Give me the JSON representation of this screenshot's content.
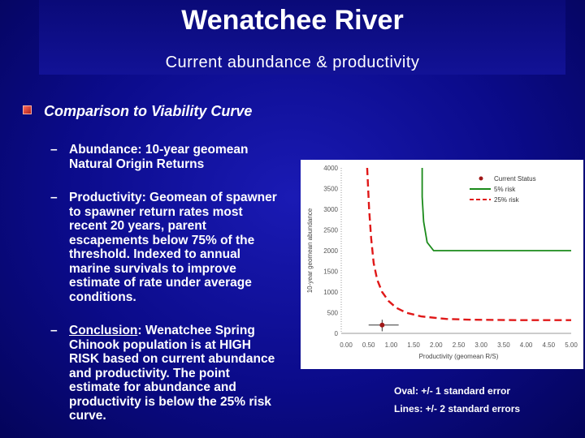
{
  "slide": {
    "title": "Wenatchee River",
    "subtitle": "Current abundance & productivity",
    "heading": "Comparison to Viability Curve",
    "bullets": [
      {
        "dash": "–",
        "text": "Abundance:  10-year geomean Natural Origin Returns"
      },
      {
        "dash": "–",
        "text": "Productivity:  Geomean of spawner to spawner return rates most recent 20 years, parent escapements below 75% of the threshold.  Indexed to annual marine survivals to improve estimate of rate under average conditions."
      }
    ],
    "conclusion": {
      "dash": "–",
      "label": "Conclusion",
      "text_pre": ":  Wenatchee Spring Chinook population is at ",
      "highlight": "HIGH RISK",
      "text_post": " based on current abundance and productivity.  The point estimate for abundance and productivity is below the 25% risk curve."
    },
    "notes": {
      "oval": "Oval:  +/- 1 standard error",
      "lines": "Lines: +/- 2 standard errors"
    }
  },
  "chart_data": {
    "type": "line",
    "xlabel": "Productivity (geomean R/S)",
    "ylabel": "10-year geomean abundance",
    "xlim": [
      0,
      4.5
    ],
    "ylim": [
      0,
      4000
    ],
    "x_ticks": [
      "0.00",
      "0.50",
      "1.00",
      "1.50",
      "2.00",
      "2.50",
      "3.00",
      "3.50",
      "4.00",
      "4.50",
      "5.00"
    ],
    "y_ticks": [
      "0",
      "500",
      "1000",
      "1500",
      "2000",
      "2500",
      "3000",
      "3500",
      "4000"
    ],
    "legend_position": "top-right",
    "series": [
      {
        "name": "Current Status",
        "kind": "point",
        "color": "#a01818",
        "x": 0.72,
        "y": 200,
        "x_err": [
          0.45,
          1.05
        ],
        "y_err": [
          50,
          330
        ]
      },
      {
        "name": "5% risk",
        "kind": "line",
        "color": "#1a8a1a",
        "style": "solid",
        "points": [
          [
            1.52,
            4000
          ],
          [
            1.52,
            3300
          ],
          [
            1.55,
            2700
          ],
          [
            1.62,
            2200
          ],
          [
            1.75,
            2000
          ],
          [
            4.5,
            2000
          ]
        ]
      },
      {
        "name": "25% risk",
        "kind": "line",
        "color": "#e01818",
        "style": "dashed",
        "points": [
          [
            0.42,
            4000
          ],
          [
            0.46,
            3000
          ],
          [
            0.5,
            2300
          ],
          [
            0.55,
            1700
          ],
          [
            0.62,
            1300
          ],
          [
            0.72,
            1000
          ],
          [
            0.85,
            780
          ],
          [
            1.0,
            620
          ],
          [
            1.2,
            500
          ],
          [
            1.5,
            410
          ],
          [
            2.0,
            350
          ],
          [
            2.5,
            330
          ],
          [
            3.5,
            320
          ],
          [
            4.5,
            320
          ]
        ]
      }
    ]
  }
}
